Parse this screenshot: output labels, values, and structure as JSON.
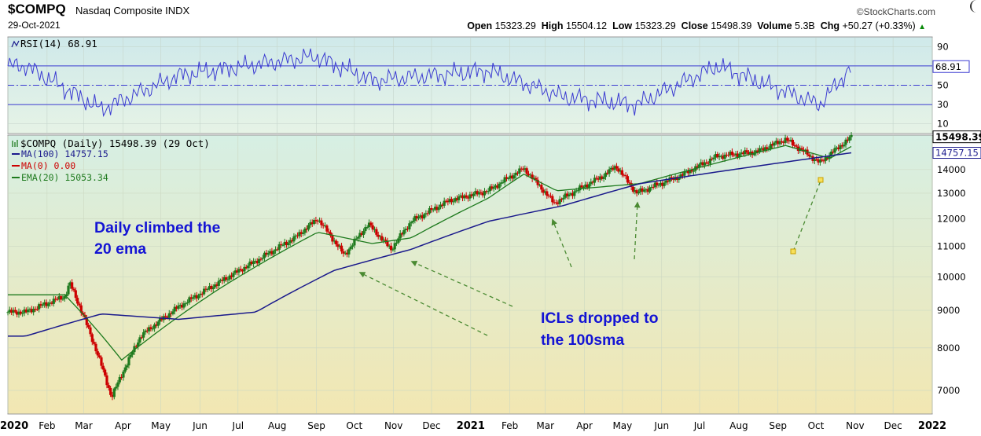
{
  "header": {
    "symbol": "$COMPQ",
    "name": "Nasdaq Composite INDX",
    "date": "29-Oct-2021",
    "brand": "©StockCharts.com",
    "open_label": "Open",
    "open": "15323.29",
    "high_label": "High",
    "high": "15504.12",
    "low_label": "Low",
    "low": "15323.29",
    "close_label": "Close",
    "close": "15498.39",
    "volume_label": "Volume",
    "volume": "5.3B",
    "chg_label": "Chg",
    "chg": "+50.27 (+0.33%)"
  },
  "rsi_panel": {
    "label": "RSI(14) 68.91",
    "current_tag": "68.91",
    "ticks": [
      "90",
      "70",
      "50",
      "30",
      "10"
    ]
  },
  "price_panel": {
    "label": "$COMPQ (Daily) 15498.39 (29 Oct)",
    "legend": [
      {
        "text": "MA(100) 14757.15",
        "color": "#1a1a8c"
      },
      {
        "text": "MA(0) 0.00",
        "color": "#cc0000"
      },
      {
        "text": "EMA(20) 15053.34",
        "color": "#1e7a1e"
      }
    ],
    "price_tag": "15498.39",
    "ma_tag": "14757.15",
    "y_ticks": [
      "14000",
      "13000",
      "12000",
      "11000",
      "10000",
      "9000",
      "8000",
      "7000"
    ]
  },
  "annotations": {
    "note1_line1": "Daily climbed the",
    "note1_line2": "20 ema",
    "note2_line1": "ICLs dropped to",
    "note2_line2": "the 100sma"
  },
  "x_axis": [
    "2020",
    "Feb",
    "Mar",
    "Apr",
    "May",
    "Jun",
    "Jul",
    "Aug",
    "Sep",
    "Oct",
    "Nov",
    "Dec",
    "2021",
    "Feb",
    "Mar",
    "Apr",
    "May",
    "Jun",
    "Jul",
    "Aug",
    "Sep",
    "Oct",
    "Nov",
    "Dec",
    "2022"
  ],
  "colors": {
    "up": "#1e7a1e",
    "down": "#cc0000",
    "ma100": "#1a1a8c",
    "ema20": "#1e7a1e",
    "rsi": "#3b3bd1",
    "note": "#1414d4"
  },
  "chart_data": {
    "type": "line",
    "title": "$COMPQ Nasdaq Composite INDX",
    "series": [
      {
        "name": "$COMPQ (Daily)",
        "x": [
          "2020-01",
          "2020-02",
          "2020-02-19",
          "2020-03-23",
          "2020-04",
          "2020-05",
          "2020-06",
          "2020-07",
          "2020-08",
          "2020-09-02",
          "2020-09-23",
          "2020-10-12",
          "2020-10-30",
          "2020-11",
          "2020-12",
          "2021-01",
          "2021-02-12",
          "2021-03-08",
          "2021-04",
          "2021-04-26",
          "2021-05-12",
          "2021-06",
          "2021-07",
          "2021-08",
          "2021-09-07",
          "2021-10-04",
          "2021-10-29"
        ],
        "values": [
          8950,
          9400,
          9800,
          6850,
          8300,
          9100,
          9800,
          10500,
          11300,
          12000,
          10700,
          11800,
          10900,
          11900,
          12700,
          13100,
          14050,
          12600,
          13700,
          14150,
          13000,
          13700,
          14600,
          14800,
          15400,
          14300,
          15498
        ]
      },
      {
        "name": "MA(100)",
        "x": [
          "2020-01",
          "2020-03",
          "2020-05",
          "2020-07",
          "2020-09",
          "2020-11",
          "2021-01",
          "2021-03",
          "2021-05",
          "2021-07",
          "2021-09",
          "2021-10-29"
        ],
        "values": [
          8300,
          8900,
          8750,
          8950,
          10200,
          10900,
          11900,
          12500,
          13400,
          13900,
          14400,
          14757.15
        ]
      },
      {
        "name": "EMA(20)",
        "x": [
          "2020-02",
          "2020-03-31",
          "2020-06",
          "2020-09-02",
          "2020-10",
          "2020-11",
          "2021-01",
          "2021-02-12",
          "2021-03-10",
          "2021-05",
          "2021-07",
          "2021-09-07",
          "2021-10-12",
          "2021-10-29"
        ],
        "values": [
          9450,
          7700,
          9600,
          11500,
          11100,
          11300,
          12800,
          13800,
          13100,
          13400,
          14300,
          15100,
          14500,
          15053.34
        ]
      },
      {
        "name": "RSI(14)",
        "x": [
          "2020-01",
          "2020-03",
          "2020-05",
          "2020-08-31",
          "2020-10",
          "2021-01",
          "2021-03",
          "2021-05-12",
          "2021-07",
          "2021-10-04",
          "2021-10-29"
        ],
        "values": [
          70,
          25,
          60,
          80,
          55,
          65,
          38,
          30,
          70,
          30,
          68.91
        ]
      }
    ],
    "ylim": [
      6500,
      15600
    ],
    "y_scale": "log",
    "ylabel": "",
    "xlabel": "",
    "grid": true
  }
}
